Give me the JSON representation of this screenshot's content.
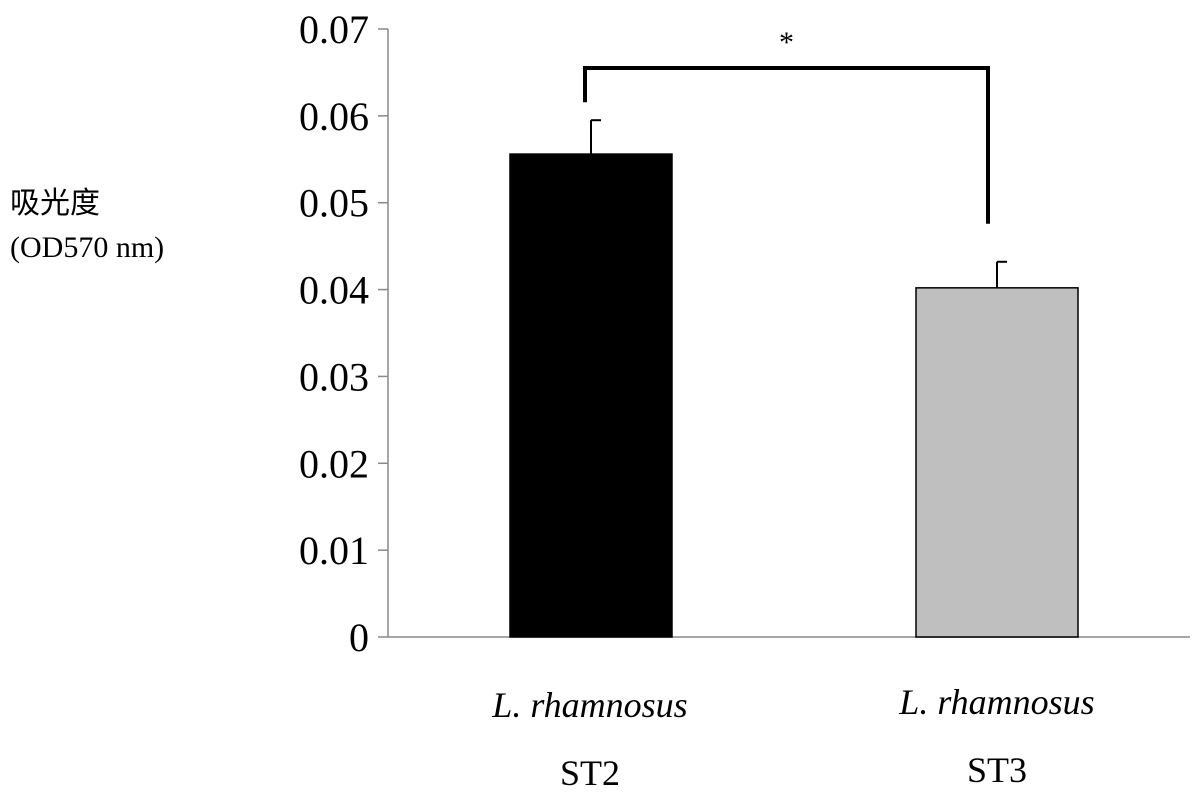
{
  "chart_data": {
    "type": "bar",
    "title": "",
    "ylabel_lines": [
      "吸光度",
      "(OD570 nm)"
    ],
    "xlabel": "",
    "categories": [
      {
        "species": "L. rhamnosus",
        "strain": "ST2"
      },
      {
        "species": "L. rhamnosus",
        "strain": "ST3"
      }
    ],
    "values": [
      0.0556,
      0.0402
    ],
    "errors": [
      0.0039,
      0.003
    ],
    "bar_colors": [
      "#000000",
      "#bfbfbf"
    ],
    "ylim": [
      0,
      0.07
    ],
    "yticks": [
      "0",
      "0.01",
      "0.02",
      "0.03",
      "0.04",
      "0.05",
      "0.06",
      "0.07"
    ],
    "grid": false,
    "legend": "none",
    "significance": {
      "pair": [
        0,
        1
      ],
      "label": "*"
    }
  }
}
